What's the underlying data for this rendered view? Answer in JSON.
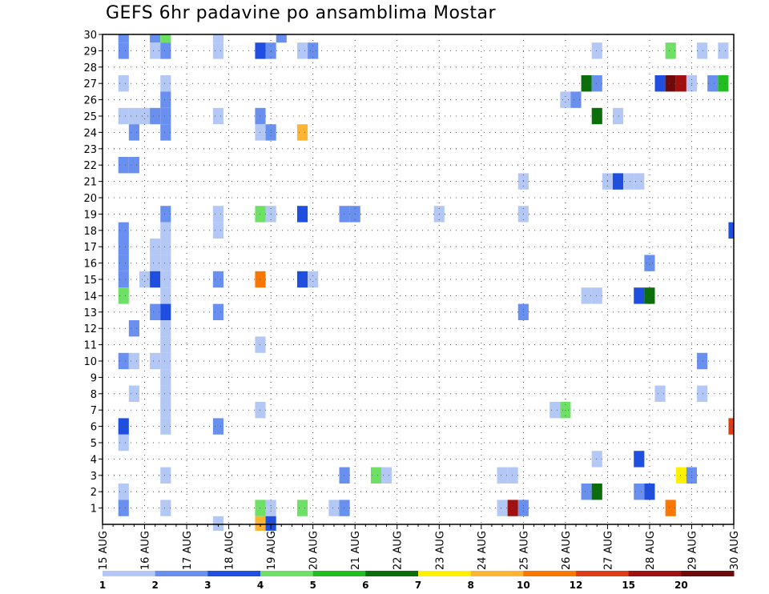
{
  "chart_data": {
    "type": "heatmap",
    "title": "GEFS 6hr padavine po ansamblima Mostar",
    "y_label": "",
    "x_label": "",
    "y_ticks": [
      "1",
      "2",
      "3",
      "4",
      "5",
      "6",
      "7",
      "8",
      "9",
      "10",
      "11",
      "12",
      "13",
      "14",
      "15",
      "16",
      "17",
      "18",
      "19",
      "20",
      "21",
      "22",
      "23",
      "24",
      "25",
      "26",
      "27",
      "28",
      "29",
      "30"
    ],
    "x_ticks": [
      "15 AUG",
      "16 AUG",
      "17 AUG",
      "18 AUG",
      "19 AUG",
      "20 AUG",
      "21 AUG",
      "22 AUG",
      "23 AUG",
      "24 AUG",
      "25 AUG",
      "26 AUG",
      "27 AUG",
      "28 AUG",
      "29 AUG",
      "30 AUG"
    ],
    "x_range_days": [
      0,
      15
    ],
    "y_range_members": [
      0,
      30
    ],
    "grid": "dotted",
    "legend_position": "bottom",
    "color_scale": {
      "colors": [
        "#b4c8f6",
        "#6990ee",
        "#1f4fe0",
        "#6fe066",
        "#20be20",
        "#0a6e0a",
        "#fff100",
        "#ffb432",
        "#fa7800",
        "#e03c14",
        "#a01010",
        "#6e0a0a"
      ],
      "labels": [
        "1",
        "2",
        "3",
        "4",
        "5",
        "6",
        "7",
        "8",
        "10",
        "12",
        "15",
        "20"
      ]
    },
    "cells": [
      {
        "member": 30,
        "day": 0.5,
        "c": 1
      },
      {
        "member": 30,
        "day": 1.25,
        "c": 1
      },
      {
        "member": 30,
        "day": 1.5,
        "c": 3
      },
      {
        "member": 30,
        "day": 2.75,
        "c": 0
      },
      {
        "member": 30,
        "day": 4.25,
        "c": 1
      },
      {
        "member": 29,
        "day": 0.5,
        "c": 1
      },
      {
        "member": 29,
        "day": 1.25,
        "c": 0
      },
      {
        "member": 29,
        "day": 1.5,
        "c": 1
      },
      {
        "member": 29,
        "day": 2.75,
        "c": 0
      },
      {
        "member": 29,
        "day": 3.75,
        "c": 2
      },
      {
        "member": 29,
        "day": 4.0,
        "c": 1
      },
      {
        "member": 29,
        "day": 4.75,
        "c": 0
      },
      {
        "member": 29,
        "day": 5.0,
        "c": 1
      },
      {
        "member": 29,
        "day": 11.75,
        "c": 0
      },
      {
        "member": 29,
        "day": 13.5,
        "c": 3
      },
      {
        "member": 29,
        "day": 14.25,
        "c": 0
      },
      {
        "member": 29,
        "day": 14.75,
        "c": 0
      },
      {
        "member": 27,
        "day": 0.5,
        "c": 0
      },
      {
        "member": 27,
        "day": 1.5,
        "c": 0
      },
      {
        "member": 27,
        "day": 11.5,
        "c": 5
      },
      {
        "member": 27,
        "day": 11.75,
        "c": 1
      },
      {
        "member": 27,
        "day": 13.25,
        "c": 2
      },
      {
        "member": 27,
        "day": 13.5,
        "c": 11
      },
      {
        "member": 27,
        "day": 13.75,
        "c": 10
      },
      {
        "member": 27,
        "day": 14.0,
        "c": 0
      },
      {
        "member": 27,
        "day": 14.5,
        "c": 1
      },
      {
        "member": 27,
        "day": 14.75,
        "c": 4
      },
      {
        "member": 26,
        "day": 1.5,
        "c": 1
      },
      {
        "member": 26,
        "day": 11.0,
        "c": 0
      },
      {
        "member": 26,
        "day": 11.25,
        "c": 1
      },
      {
        "member": 25,
        "day": 0.5,
        "c": 0
      },
      {
        "member": 25,
        "day": 0.75,
        "c": 0
      },
      {
        "member": 25,
        "day": 1.0,
        "c": 0
      },
      {
        "member": 25,
        "day": 1.25,
        "c": 1
      },
      {
        "member": 25,
        "day": 1.5,
        "c": 1
      },
      {
        "member": 25,
        "day": 2.75,
        "c": 0
      },
      {
        "member": 25,
        "day": 3.75,
        "c": 1
      },
      {
        "member": 25,
        "day": 11.75,
        "c": 5
      },
      {
        "member": 25,
        "day": 12.25,
        "c": 0
      },
      {
        "member": 24,
        "day": 0.75,
        "c": 1
      },
      {
        "member": 24,
        "day": 1.5,
        "c": 1
      },
      {
        "member": 24,
        "day": 3.75,
        "c": 0
      },
      {
        "member": 24,
        "day": 4.0,
        "c": 1
      },
      {
        "member": 24,
        "day": 4.75,
        "c": 7
      },
      {
        "member": 22,
        "day": 0.5,
        "c": 1
      },
      {
        "member": 22,
        "day": 0.75,
        "c": 1
      },
      {
        "member": 21,
        "day": 10.0,
        "c": 0
      },
      {
        "member": 21,
        "day": 12.0,
        "c": 0
      },
      {
        "member": 21,
        "day": 12.25,
        "c": 2
      },
      {
        "member": 21,
        "day": 12.5,
        "c": 0
      },
      {
        "member": 21,
        "day": 12.75,
        "c": 0
      },
      {
        "member": 19,
        "day": 1.5,
        "c": 1
      },
      {
        "member": 19,
        "day": 2.75,
        "c": 0
      },
      {
        "member": 19,
        "day": 3.75,
        "c": 3
      },
      {
        "member": 19,
        "day": 4.0,
        "c": 0
      },
      {
        "member": 19,
        "day": 4.75,
        "c": 2
      },
      {
        "member": 19,
        "day": 5.75,
        "c": 1
      },
      {
        "member": 19,
        "day": 6.0,
        "c": 1
      },
      {
        "member": 19,
        "day": 8.0,
        "c": 0
      },
      {
        "member": 19,
        "day": 10.0,
        "c": 0
      },
      {
        "member": 18,
        "day": 0.5,
        "c": 1
      },
      {
        "member": 18,
        "day": 1.5,
        "c": 0
      },
      {
        "member": 18,
        "day": 2.75,
        "c": 0
      },
      {
        "member": 18,
        "day": 15.0,
        "c": 2
      },
      {
        "member": 17,
        "day": 0.5,
        "c": 1
      },
      {
        "member": 17,
        "day": 1.25,
        "c": 0
      },
      {
        "member": 17,
        "day": 1.5,
        "c": 0
      },
      {
        "member": 16,
        "day": 0.5,
        "c": 1
      },
      {
        "member": 16,
        "day": 1.25,
        "c": 0
      },
      {
        "member": 16,
        "day": 1.5,
        "c": 0
      },
      {
        "member": 16,
        "day": 13.0,
        "c": 1
      },
      {
        "member": 15,
        "day": 0.5,
        "c": 1
      },
      {
        "member": 15,
        "day": 1.0,
        "c": 0
      },
      {
        "member": 15,
        "day": 1.25,
        "c": 2
      },
      {
        "member": 15,
        "day": 1.5,
        "c": 0
      },
      {
        "member": 15,
        "day": 2.75,
        "c": 1
      },
      {
        "member": 15,
        "day": 3.75,
        "c": 8
      },
      {
        "member": 15,
        "day": 4.75,
        "c": 2
      },
      {
        "member": 15,
        "day": 5.0,
        "c": 0
      },
      {
        "member": 14,
        "day": 0.5,
        "c": 3
      },
      {
        "member": 14,
        "day": 1.5,
        "c": 0
      },
      {
        "member": 14,
        "day": 11.5,
        "c": 0
      },
      {
        "member": 14,
        "day": 11.75,
        "c": 0
      },
      {
        "member": 14,
        "day": 12.75,
        "c": 2
      },
      {
        "member": 14,
        "day": 13.0,
        "c": 5
      },
      {
        "member": 13,
        "day": 1.25,
        "c": 1
      },
      {
        "member": 13,
        "day": 1.5,
        "c": 2
      },
      {
        "member": 13,
        "day": 2.75,
        "c": 1
      },
      {
        "member": 13,
        "day": 10.0,
        "c": 1
      },
      {
        "member": 12,
        "day": 0.75,
        "c": 1
      },
      {
        "member": 12,
        "day": 1.5,
        "c": 0
      },
      {
        "member": 11,
        "day": 1.5,
        "c": 0
      },
      {
        "member": 11,
        "day": 3.75,
        "c": 0
      },
      {
        "member": 10,
        "day": 0.5,
        "c": 1
      },
      {
        "member": 10,
        "day": 0.75,
        "c": 0
      },
      {
        "member": 10,
        "day": 1.25,
        "c": 0
      },
      {
        "member": 10,
        "day": 1.5,
        "c": 0
      },
      {
        "member": 10,
        "day": 14.25,
        "c": 1
      },
      {
        "member": 9,
        "day": 1.5,
        "c": 0
      },
      {
        "member": 8,
        "day": 0.75,
        "c": 0
      },
      {
        "member": 8,
        "day": 1.5,
        "c": 0
      },
      {
        "member": 8,
        "day": 13.25,
        "c": 0
      },
      {
        "member": 8,
        "day": 14.25,
        "c": 0
      },
      {
        "member": 7,
        "day": 1.5,
        "c": 0
      },
      {
        "member": 7,
        "day": 3.75,
        "c": 0
      },
      {
        "member": 7,
        "day": 10.75,
        "c": 0
      },
      {
        "member": 7,
        "day": 11.0,
        "c": 3
      },
      {
        "member": 6,
        "day": 0.5,
        "c": 2
      },
      {
        "member": 6,
        "day": 1.5,
        "c": 0
      },
      {
        "member": 6,
        "day": 2.75,
        "c": 1
      },
      {
        "member": 6,
        "day": 15.0,
        "c": 9
      },
      {
        "member": 5,
        "day": 0.5,
        "c": 0
      },
      {
        "member": 4,
        "day": 11.75,
        "c": 0
      },
      {
        "member": 4,
        "day": 12.75,
        "c": 2
      },
      {
        "member": 3,
        "day": 1.5,
        "c": 0
      },
      {
        "member": 3,
        "day": 5.75,
        "c": 1
      },
      {
        "member": 3,
        "day": 6.5,
        "c": 3
      },
      {
        "member": 3,
        "day": 6.75,
        "c": 0
      },
      {
        "member": 3,
        "day": 9.5,
        "c": 0
      },
      {
        "member": 3,
        "day": 9.75,
        "c": 0
      },
      {
        "member": 3,
        "day": 13.75,
        "c": 6
      },
      {
        "member": 3,
        "day": 14.0,
        "c": 1
      },
      {
        "member": 2,
        "day": 0.5,
        "c": 0
      },
      {
        "member": 2,
        "day": 11.5,
        "c": 1
      },
      {
        "member": 2,
        "day": 11.75,
        "c": 5
      },
      {
        "member": 2,
        "day": 12.75,
        "c": 1
      },
      {
        "member": 2,
        "day": 13.0,
        "c": 2
      },
      {
        "member": 1,
        "day": 0.5,
        "c": 1
      },
      {
        "member": 1,
        "day": 1.5,
        "c": 0
      },
      {
        "member": 1,
        "day": 3.75,
        "c": 3
      },
      {
        "member": 1,
        "day": 4.0,
        "c": 0
      },
      {
        "member": 1,
        "day": 4.75,
        "c": 3
      },
      {
        "member": 1,
        "day": 5.5,
        "c": 0
      },
      {
        "member": 1,
        "day": 5.75,
        "c": 1
      },
      {
        "member": 1,
        "day": 9.5,
        "c": 0
      },
      {
        "member": 1,
        "day": 9.75,
        "c": 10
      },
      {
        "member": 1,
        "day": 10.0,
        "c": 1
      },
      {
        "member": 1,
        "day": 13.5,
        "c": 8
      },
      {
        "member": 0,
        "day": 2.75,
        "c": 0
      },
      {
        "member": 0,
        "day": 3.75,
        "c": 7
      },
      {
        "member": 0,
        "day": 4.0,
        "c": 2
      }
    ]
  }
}
